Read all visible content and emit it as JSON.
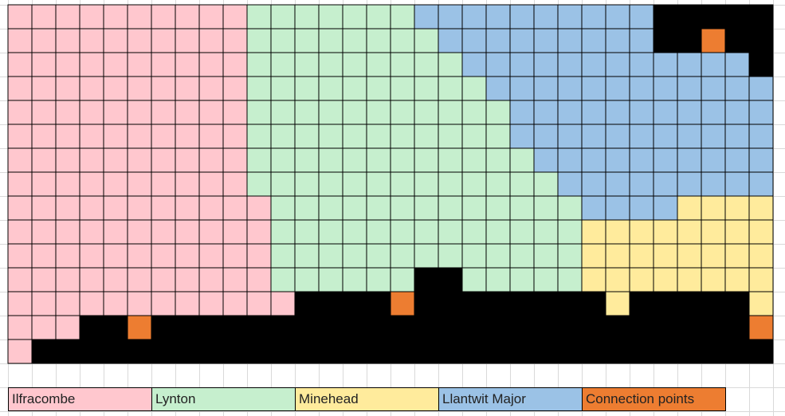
{
  "legend": [
    {
      "label": "Ilfracombe",
      "color": "#ffc7ce"
    },
    {
      "label": "Lynton",
      "color": "#c6efce"
    },
    {
      "label": "Minehead",
      "color": "#ffeb9c"
    },
    {
      "label": "Llantwit Major",
      "color": "#9bc2e6"
    },
    {
      "label": "Connection points",
      "color": "#ed7d31"
    }
  ]
}
